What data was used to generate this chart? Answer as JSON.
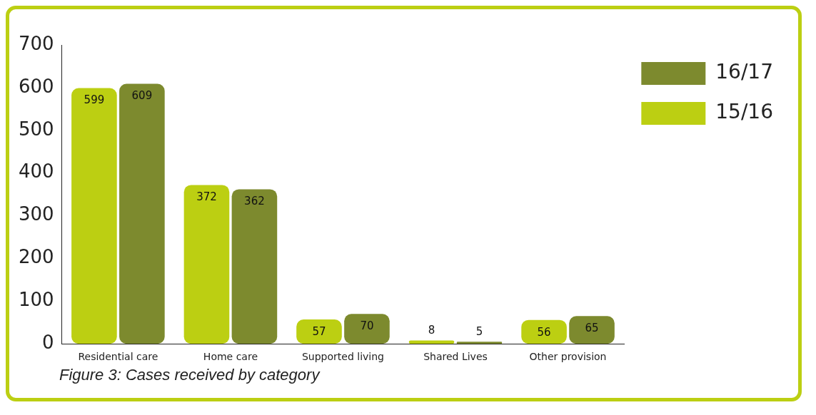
{
  "chart_data": {
    "type": "bar",
    "categories": [
      "Residential care",
      "Home care",
      "Supported living",
      "Shared Lives",
      "Other provision"
    ],
    "series": [
      {
        "name": "15/16",
        "color": "#bccf12",
        "values": [
          599,
          372,
          57,
          8,
          56
        ]
      },
      {
        "name": "16/17",
        "color": "#7d8a2e",
        "values": [
          609,
          362,
          70,
          5,
          65
        ]
      }
    ],
    "ylim": [
      0,
      700
    ],
    "yticks": [
      0,
      100,
      200,
      300,
      400,
      500,
      600,
      700
    ],
    "grid": false,
    "legend": "top right",
    "data_labels": true,
    "annotations": [
      "Figure 3: Cases received by category"
    ]
  }
}
